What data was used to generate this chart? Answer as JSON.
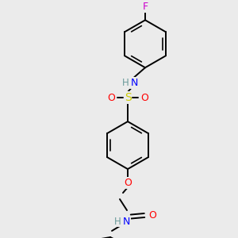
{
  "background_color": "#ebebeb",
  "bond_color": "#000000",
  "atom_colors": {
    "N": "#0000ff",
    "O": "#ff0000",
    "S": "#cccc00",
    "F": "#cc00cc",
    "H": "#6a9a9a",
    "C": "#000000"
  }
}
